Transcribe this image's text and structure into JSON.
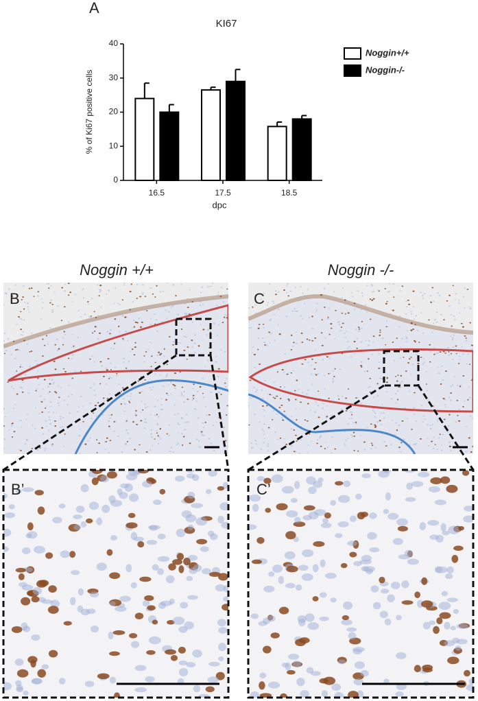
{
  "chart_data": {
    "type": "bar",
    "panel_label": "A",
    "title": "KI67",
    "y_label": "% of Ki67 positive cells",
    "x_label": "dpc",
    "categories": [
      "16.5",
      "17.5",
      "18.5"
    ],
    "series": [
      {
        "name": "Noggin+/+",
        "color": "#ffffff",
        "values": [
          24,
          26.5,
          15.8
        ],
        "errors": [
          4.5,
          0.8,
          1.3
        ]
      },
      {
        "name": "Noggin-/-",
        "color": "#000000",
        "values": [
          20,
          29,
          18
        ],
        "errors": [
          2.2,
          3.5,
          1.0
        ]
      }
    ],
    "ylim": [
      0,
      40
    ],
    "yticks": [
      0,
      10,
      20,
      30,
      40
    ],
    "grid": false,
    "legend": "upper right"
  },
  "panels": {
    "b_title": "Noggin +/+",
    "c_title": "Noggin -/-",
    "b_label": "B",
    "c_label": "C",
    "b_zoom_label": "B’",
    "c_zoom_label": "C’"
  }
}
